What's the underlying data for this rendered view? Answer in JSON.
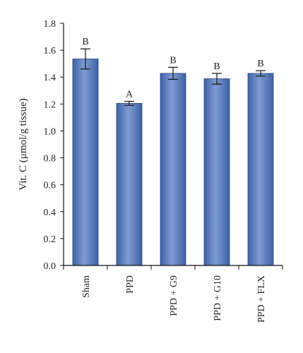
{
  "chart_data": {
    "type": "bar",
    "title": "",
    "xlabel": "",
    "ylabel": "Vit. C (μmol/g tissue)",
    "ylim": [
      0,
      1.8
    ],
    "yticks": [
      "0.0",
      "0.2",
      "0.4",
      "0.6",
      "0.8",
      "1.0",
      "1.2",
      "1.4",
      "1.6",
      "1.8"
    ],
    "grid": false,
    "categories": [
      "Sham",
      "PPD",
      "PPD + G9",
      "PPD + G10",
      "PPD + FLX"
    ],
    "values": [
      1.535,
      1.205,
      1.428,
      1.388,
      1.428
    ],
    "errors": [
      0.075,
      0.015,
      0.045,
      0.04,
      0.02
    ],
    "significance": [
      "B",
      "A",
      "B",
      "B",
      "B"
    ],
    "bar_color": "#3f62a6",
    "bar_highlight": "#7e9bd4",
    "bar_edge": "#2a467f"
  }
}
